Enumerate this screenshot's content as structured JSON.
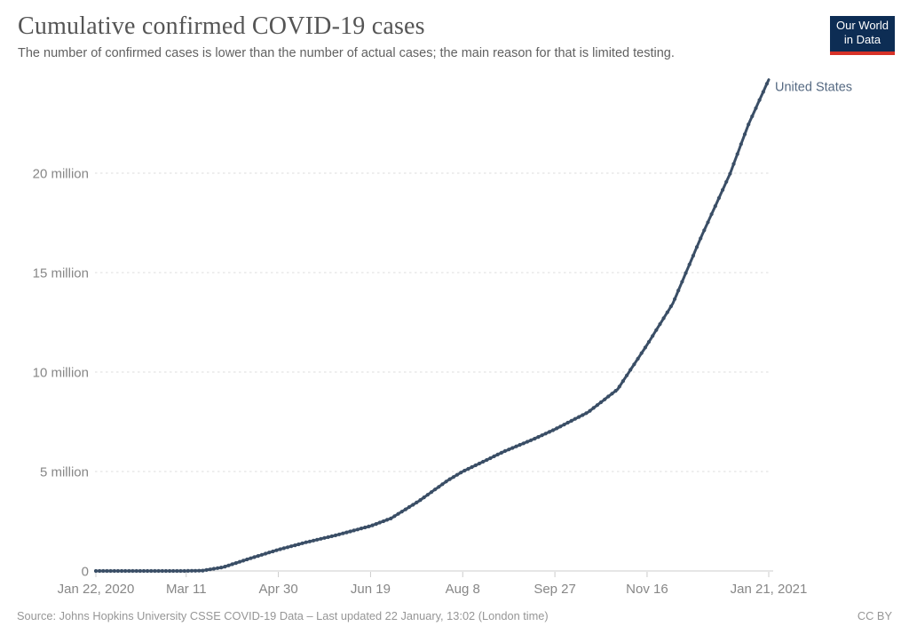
{
  "header": {
    "title": "Cumulative confirmed COVID-19 cases",
    "subtitle": "The number of confirmed cases is lower than the number of actual cases; the main reason for that is limited testing.",
    "logo": {
      "line1": "Our World",
      "line2": "in Data",
      "bg_color": "#0d2d54",
      "accent_color": "#d73228"
    }
  },
  "footer": {
    "source": "Source: Johns Hopkins University CSSE COVID-19 Data – Last updated 22 January, 13:02 (London time)",
    "license": "CC BY"
  },
  "chart_data": {
    "type": "line",
    "title": "Cumulative confirmed COVID-19 cases",
    "xlabel": "",
    "ylabel": "",
    "grid": true,
    "x_range": [
      "2020-01-22",
      "2021-01-21"
    ],
    "ylim": [
      0,
      25000000
    ],
    "y_ticks": [
      {
        "value": 0,
        "label": "0"
      },
      {
        "value": 5000000,
        "label": "5 million"
      },
      {
        "value": 10000000,
        "label": "10 million"
      },
      {
        "value": 15000000,
        "label": "15 million"
      },
      {
        "value": 20000000,
        "label": "20 million"
      }
    ],
    "x_ticks": [
      {
        "date": "2020-01-22",
        "label": "Jan 22, 2020"
      },
      {
        "date": "2020-03-11",
        "label": "Mar 11"
      },
      {
        "date": "2020-04-30",
        "label": "Apr 30"
      },
      {
        "date": "2020-06-19",
        "label": "Jun 19"
      },
      {
        "date": "2020-08-08",
        "label": "Aug 8"
      },
      {
        "date": "2020-09-27",
        "label": "Sep 27"
      },
      {
        "date": "2020-11-16",
        "label": "Nov 16"
      },
      {
        "date": "2021-01-21",
        "label": "Jan 21, 2021"
      }
    ],
    "series": [
      {
        "name": "United States",
        "color": "#3a4e66",
        "label_color": "#556982",
        "points": [
          {
            "date": "2020-01-22",
            "cases": 1
          },
          {
            "date": "2020-02-15",
            "cases": 15
          },
          {
            "date": "2020-03-01",
            "cases": 32
          },
          {
            "date": "2020-03-11",
            "cases": 1300
          },
          {
            "date": "2020-03-20",
            "cases": 19000
          },
          {
            "date": "2020-03-31",
            "cases": 188000
          },
          {
            "date": "2020-04-15",
            "cases": 640000
          },
          {
            "date": "2020-04-30",
            "cases": 1070000
          },
          {
            "date": "2020-05-15",
            "cases": 1440000
          },
          {
            "date": "2020-05-31",
            "cases": 1790000
          },
          {
            "date": "2020-06-19",
            "cases": 2260000
          },
          {
            "date": "2020-06-30",
            "cases": 2640000
          },
          {
            "date": "2020-07-15",
            "cases": 3500000
          },
          {
            "date": "2020-07-31",
            "cases": 4560000
          },
          {
            "date": "2020-08-08",
            "cases": 5000000
          },
          {
            "date": "2020-08-31",
            "cases": 6030000
          },
          {
            "date": "2020-09-15",
            "cases": 6610000
          },
          {
            "date": "2020-09-27",
            "cases": 7120000
          },
          {
            "date": "2020-10-15",
            "cases": 7980000
          },
          {
            "date": "2020-10-31",
            "cases": 9130000
          },
          {
            "date": "2020-11-16",
            "cases": 11370000
          },
          {
            "date": "2020-11-30",
            "cases": 13450000
          },
          {
            "date": "2020-12-15",
            "cases": 16720000
          },
          {
            "date": "2020-12-31",
            "cases": 19970000
          },
          {
            "date": "2021-01-10",
            "cases": 22450000
          },
          {
            "date": "2021-01-21",
            "cases": 24700000
          }
        ]
      }
    ],
    "legend_position": "end-of-line-label"
  }
}
